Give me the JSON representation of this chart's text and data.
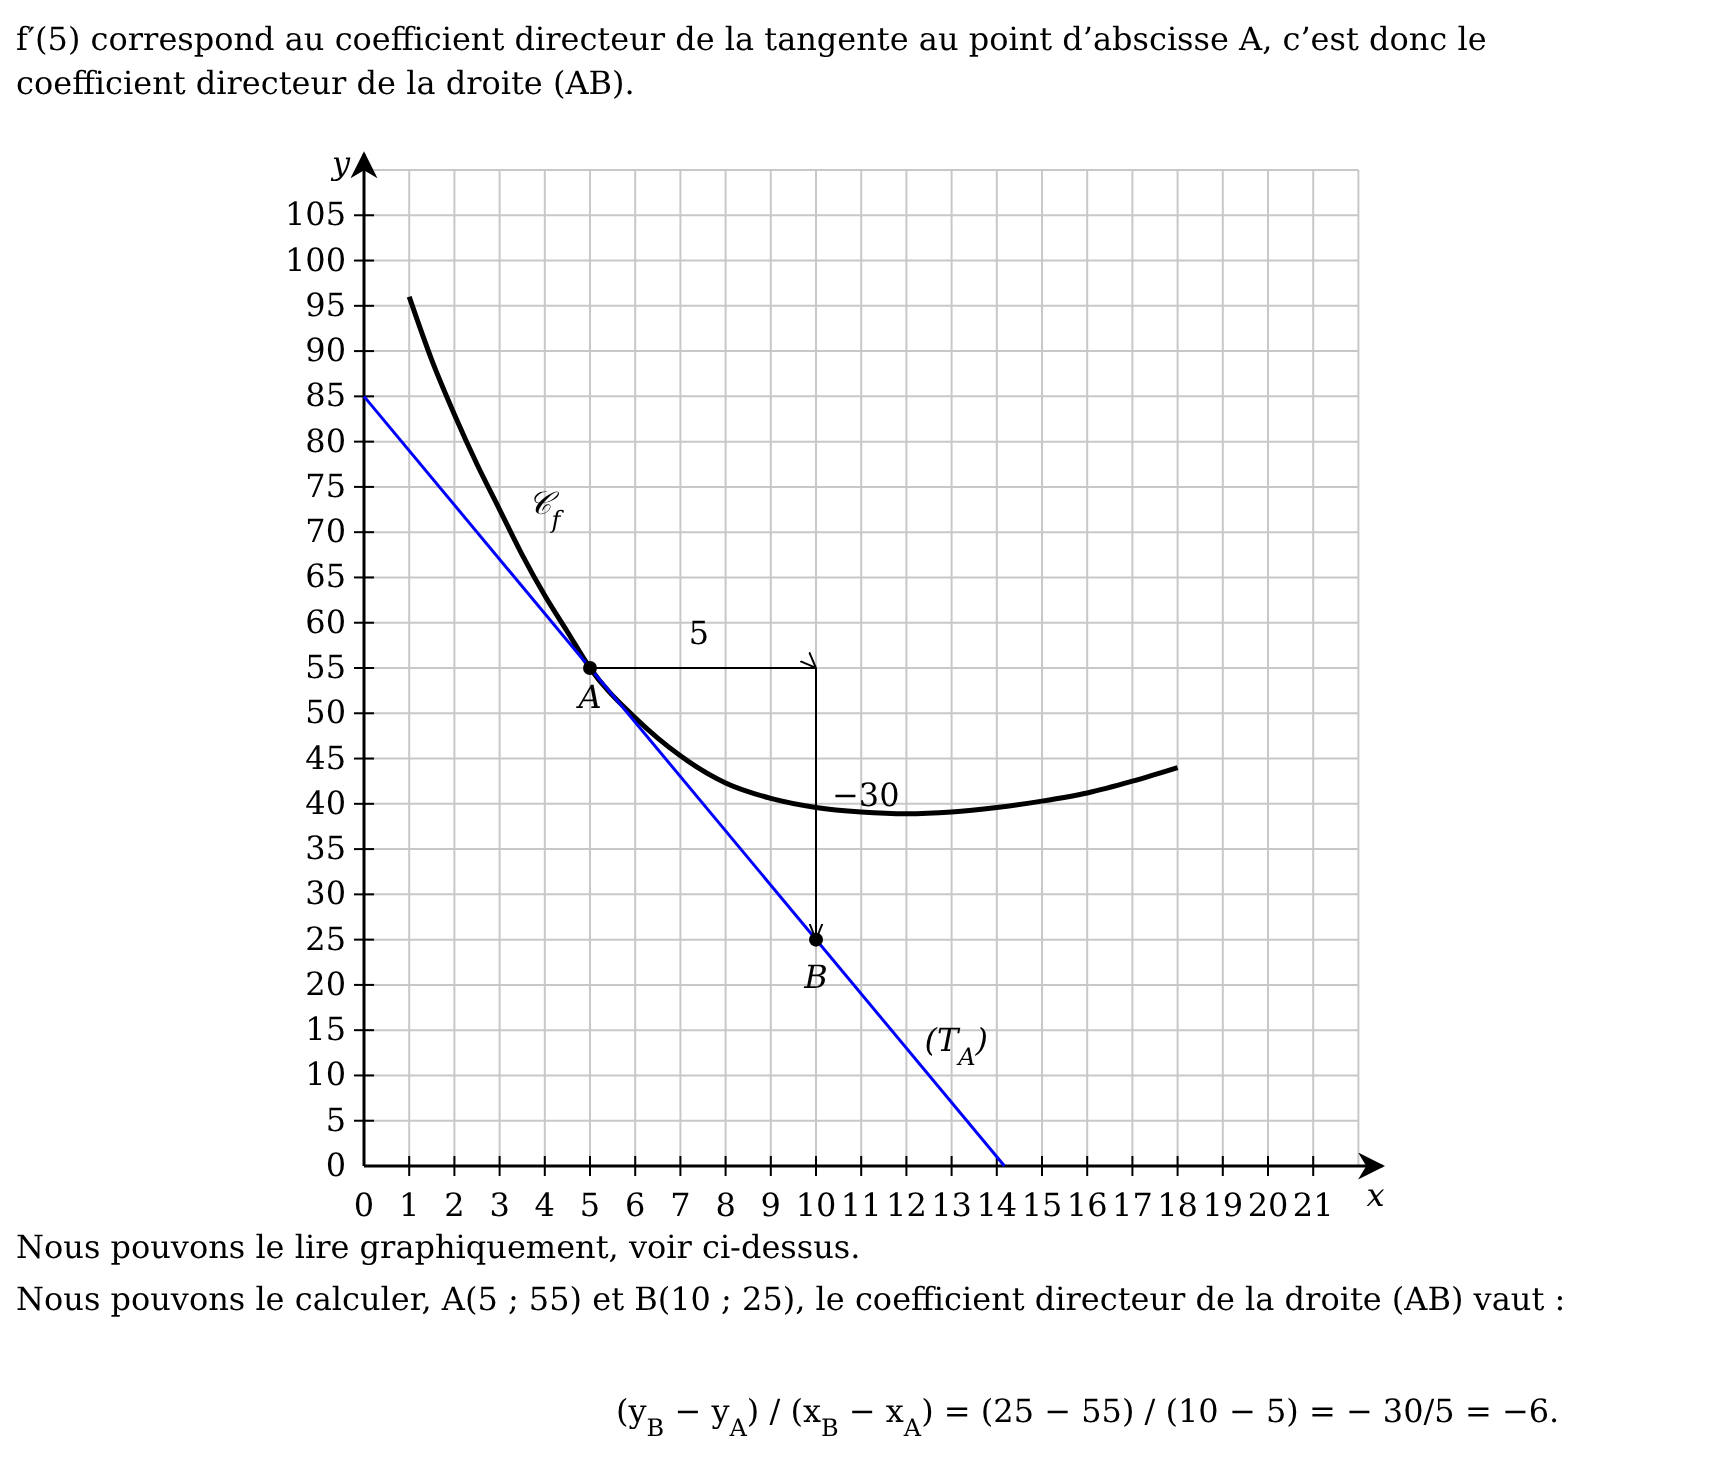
{
  "chart_data": {
    "type": "line",
    "title": "f′(5) correspond au coefficient directeur de la tangente au point d’abscisse A, c’est donc le coefficient directeur de la droite (AB).",
    "xlabel": "x",
    "ylabel": "y",
    "xlim": [
      0,
      22
    ],
    "ylim": [
      0,
      110
    ],
    "xticks": [
      0,
      1,
      2,
      3,
      4,
      5,
      6,
      7,
      8,
      9,
      10,
      11,
      12,
      13,
      14,
      15,
      16,
      17,
      18,
      19,
      20,
      21
    ],
    "yticks": [
      0,
      5,
      10,
      15,
      20,
      25,
      30,
      35,
      40,
      45,
      50,
      55,
      60,
      65,
      70,
      75,
      80,
      85,
      90,
      95,
      100,
      105
    ],
    "grid": true,
    "series": [
      {
        "name": "𝒞$_{f}$",
        "color": "#000000",
        "x": [
          1,
          1.5,
          2,
          2.5,
          3,
          3.5,
          4,
          4.5,
          5,
          6,
          7,
          8,
          9,
          10,
          11,
          12,
          13,
          14,
          15,
          16,
          17,
          18
        ],
        "values": [
          96,
          89,
          83,
          77.5,
          72.5,
          67.5,
          63,
          59,
          55,
          49.5,
          45.3,
          42.3,
          40.6,
          39.6,
          39.1,
          38.9,
          39.1,
          39.6,
          40.3,
          41.2,
          42.5,
          44
        ]
      },
      {
        "name": "(T$_{A}$)",
        "color": "#0000ff",
        "x": [
          0,
          14.17
        ],
        "values": [
          85,
          0
        ]
      },
      {
        "color": "#000000",
        "x": [
          5,
          10,
          10
        ],
        "values": [
          55,
          55,
          25
        ]
      },
      {
        "type": "scatter",
        "marker": "circle",
        "color": "#000000",
        "x": [
          5,
          10
        ],
        "values": [
          55,
          25
        ]
      }
    ],
    "annotations": [
      {
        "text": "A",
        "x": 5,
        "y": 55
      },
      {
        "text": "B",
        "x": 10,
        "y": 25
      },
      {
        "text": "5",
        "x": 7.5,
        "y": 55
      },
      {
        "text": "−30",
        "x": 10,
        "y": 40
      },
      "Nous pouvons le lire graphiquement, voir ci-dessus.",
      "Nous pouvons le calculer, A(5 ; 55) et B(10 ; 25), le coefficient directeur de la droite (AB) vaut :",
      "(y$_{B}$ − y$_{A}$) / (x$_{B}$ − x$_{A}$) = (25 − 55) / (10 − 5) = − 30/5 = −6."
    ]
  }
}
